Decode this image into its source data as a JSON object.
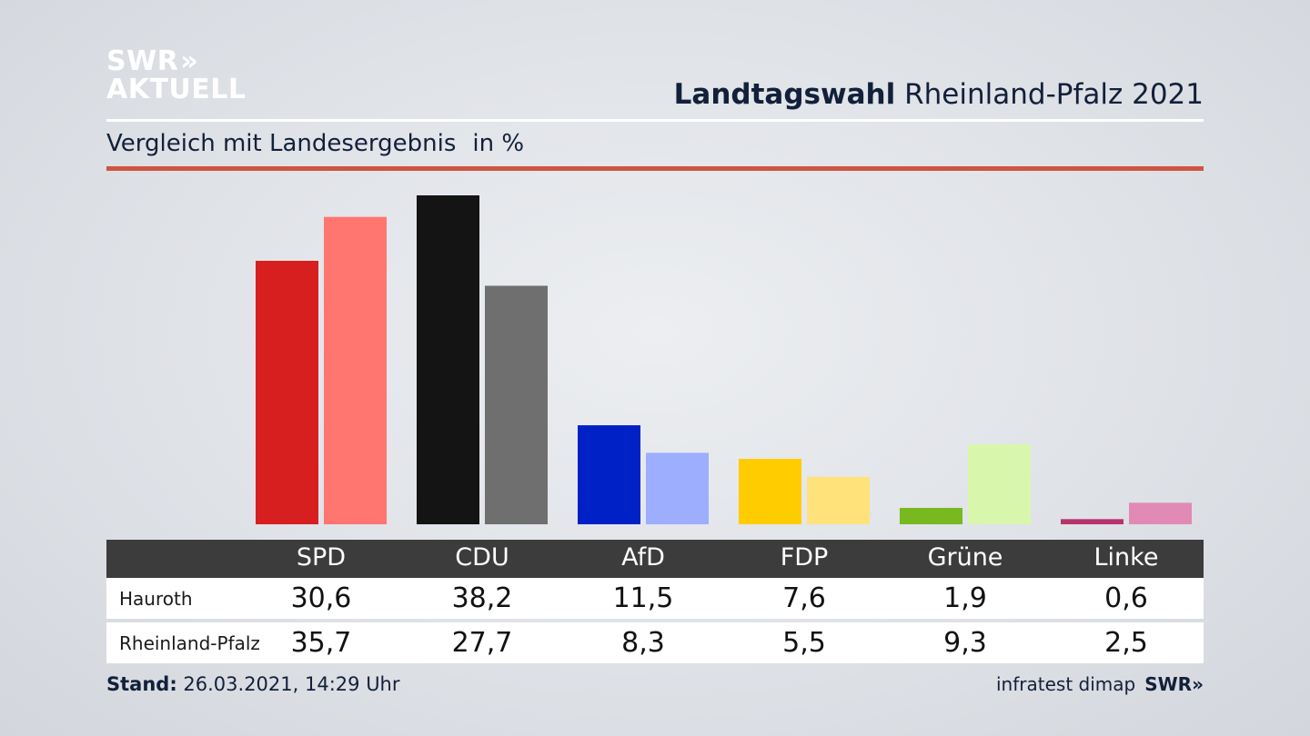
{
  "logo": {
    "line1": "SWR",
    "chevrons": "»",
    "line2": "AKTUELL"
  },
  "header": {
    "title_bold": "Landtagswahl",
    "title_rest": "Rheinland-Pfalz 2021"
  },
  "subtitle": {
    "text": "Vergleich mit Landesergebnis",
    "unit": "in %"
  },
  "colors": {
    "accent_rule": "#cf5440",
    "header_bg": "#3c3c3c"
  },
  "chart_data": {
    "type": "bar",
    "title": "Landtagswahl Rheinland-Pfalz 2021",
    "subtitle": "Vergleich mit Landesergebnis",
    "unit": "in %",
    "categories": [
      "SPD",
      "CDU",
      "AfD",
      "FDP",
      "Grüne",
      "Linke"
    ],
    "series": [
      {
        "name": "Hauroth",
        "values": [
          30.6,
          38.2,
          11.5,
          7.6,
          1.9,
          0.6
        ],
        "colors": [
          "#d71f20",
          "#141414",
          "#0021c6",
          "#ffcc00",
          "#77b91e",
          "#b5346d"
        ]
      },
      {
        "name": "Rheinland-Pfalz",
        "values": [
          35.7,
          27.7,
          8.3,
          5.5,
          9.3,
          2.5
        ],
        "colors": [
          "#ff7670",
          "#6f6f6f",
          "#9dadff",
          "#ffe27a",
          "#d8f7ad",
          "#e18ab6"
        ]
      }
    ],
    "value_labels": [
      [
        "30,6",
        "38,2",
        "11,5",
        "7,6",
        "1,9",
        "0,6"
      ],
      [
        "35,7",
        "27,7",
        "8,3",
        "5,5",
        "9,3",
        "2,5"
      ]
    ],
    "ylim": [
      0,
      40
    ]
  },
  "footer": {
    "stand_label": "Stand:",
    "stand_value": "26.03.2021, 14:29 Uhr",
    "source": "infratest dimap",
    "swr": "SWR»"
  }
}
